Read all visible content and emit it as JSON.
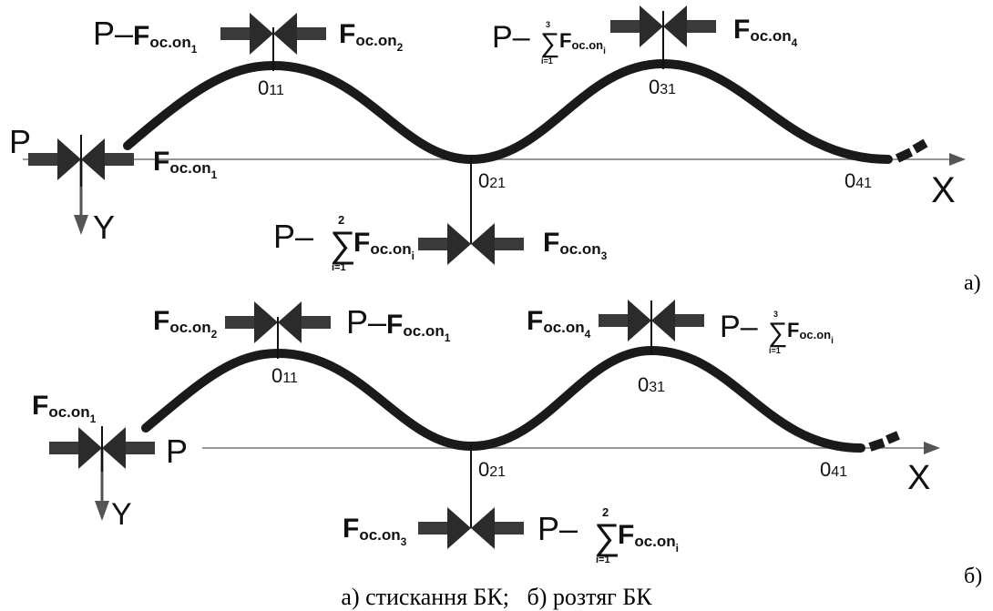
{
  "panels": [
    {
      "id": "a",
      "panel_label": "а)",
      "symbols": {
        "P": "P",
        "minus": "–",
        "F": "F",
        "sub": "oc.on",
        "sigma": "∑",
        "i_eq_1": "i=1",
        "two": "2",
        "three": "3",
        "idx1": "1",
        "idx2": "2",
        "idx3": "3",
        "idx4": "4",
        "idx_i": "i"
      },
      "points": {
        "o11": "0",
        "o11_sub": "11",
        "o21": "0",
        "o21_sub": "21",
        "o31": "0",
        "o31_sub": "31",
        "o41": "0",
        "o41_sub": "41"
      },
      "axes": {
        "x": "X",
        "y": "Y"
      }
    },
    {
      "id": "b",
      "panel_label": "б)",
      "symbols": {
        "P": "P",
        "minus": "–",
        "F": "F",
        "sub": "oc.on",
        "sigma": "∑",
        "i_eq_1": "i=1",
        "two": "2",
        "three": "3",
        "idx1": "1",
        "idx2": "2",
        "idx3": "3",
        "idx4": "4",
        "idx_i": "i"
      },
      "points": {
        "o11": "0",
        "o11_sub": "11",
        "o21": "0",
        "o21_sub": "21",
        "o31": "0",
        "o31_sub": "31",
        "o41": "0",
        "o41_sub": "41"
      },
      "axes": {
        "x": "X",
        "y": "Y"
      }
    }
  ],
  "caption": "а) стискання БК;   б) розтяг БК"
}
